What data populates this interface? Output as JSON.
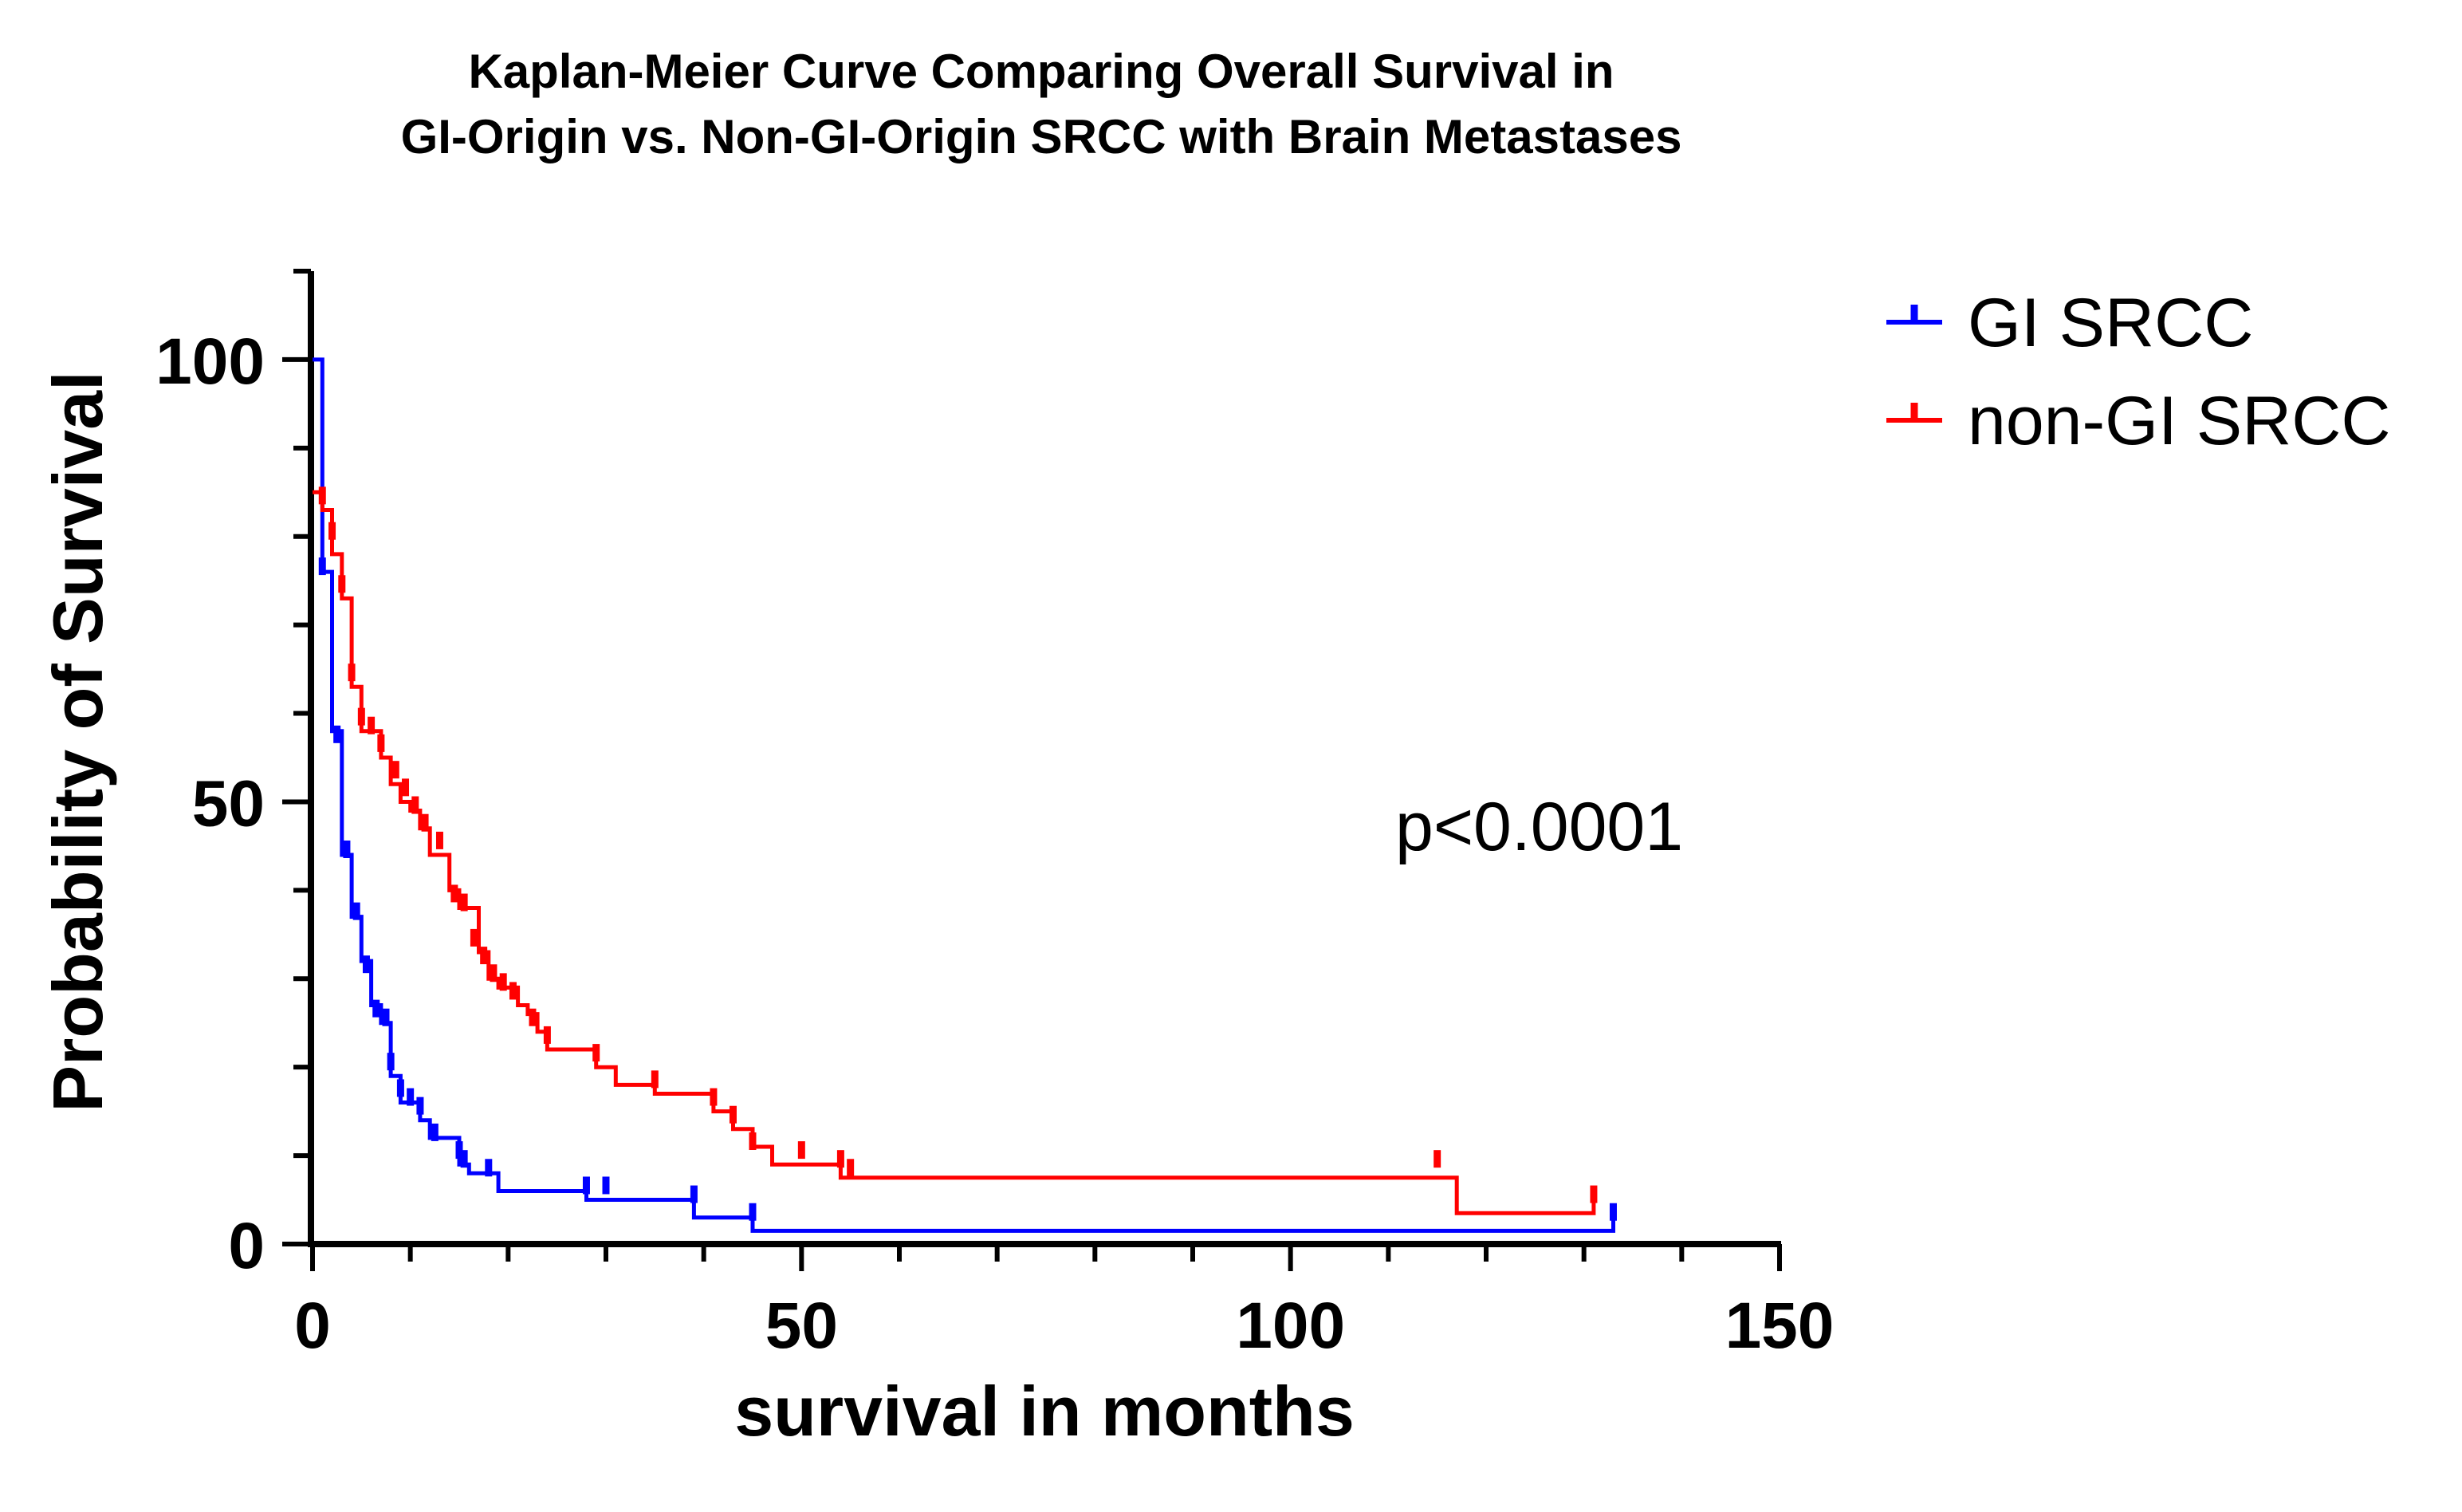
{
  "chart_data": {
    "type": "line",
    "title": "Kaplan-Meier Curve Comparing Overall Survival in",
    "subtitle": "GI-Origin vs. Non-GI-Origin SRCC with Brain Metastases",
    "xlabel": "survival in months",
    "ylabel": "Probability of Survival",
    "xlim": [
      0,
      150
    ],
    "ylim": [
      0,
      110
    ],
    "x_ticks": [
      "0",
      "50",
      "100",
      "150"
    ],
    "y_ticks": [
      "0",
      "50",
      "100"
    ],
    "grid": false,
    "legend_position": "top-right",
    "annotation": "p<0.0001",
    "series": [
      {
        "name": "GI SRCC",
        "color": "#0000ff",
        "points": [
          [
            0,
            100
          ],
          [
            1,
            100
          ],
          [
            1,
            76
          ],
          [
            2,
            76
          ],
          [
            2,
            58
          ],
          [
            3,
            58
          ],
          [
            3,
            44
          ],
          [
            4,
            44
          ],
          [
            4,
            37
          ],
          [
            5,
            37
          ],
          [
            5,
            32
          ],
          [
            6,
            32
          ],
          [
            6,
            27
          ],
          [
            7,
            27
          ],
          [
            7,
            25
          ],
          [
            8,
            25
          ],
          [
            8,
            19
          ],
          [
            9,
            19
          ],
          [
            9,
            16
          ],
          [
            11,
            16
          ],
          [
            11,
            14
          ],
          [
            12,
            14
          ],
          [
            12,
            12
          ],
          [
            15,
            12
          ],
          [
            15,
            9
          ],
          [
            16,
            9
          ],
          [
            16,
            8
          ],
          [
            19,
            8
          ],
          [
            19,
            6
          ],
          [
            28,
            6
          ],
          [
            28,
            5
          ],
          [
            39,
            5
          ],
          [
            39,
            3
          ],
          [
            45,
            3
          ],
          [
            45,
            1.5
          ],
          [
            133,
            1.5
          ],
          [
            133,
            3
          ]
        ],
        "censored": [
          [
            1,
            76
          ],
          [
            2.5,
            57
          ],
          [
            3.5,
            44
          ],
          [
            4.5,
            37
          ],
          [
            5.5,
            31
          ],
          [
            6.5,
            26
          ],
          [
            7.5,
            25
          ],
          [
            8,
            20
          ],
          [
            9,
            17
          ],
          [
            10,
            16
          ],
          [
            11,
            15
          ],
          [
            12.5,
            12
          ],
          [
            15,
            10
          ],
          [
            15.5,
            9
          ],
          [
            18,
            8
          ],
          [
            28,
            6
          ],
          [
            30,
            6
          ],
          [
            39,
            5
          ],
          [
            45,
            3
          ],
          [
            133,
            3
          ]
        ]
      },
      {
        "name": "non-GI SRCC",
        "color": "#ff0000",
        "points": [
          [
            0,
            85
          ],
          [
            1,
            85
          ],
          [
            1,
            83
          ],
          [
            2,
            83
          ],
          [
            2,
            78
          ],
          [
            3,
            78
          ],
          [
            3,
            73
          ],
          [
            4,
            73
          ],
          [
            4,
            63
          ],
          [
            5,
            63
          ],
          [
            5,
            58
          ],
          [
            7,
            58
          ],
          [
            7,
            55
          ],
          [
            8,
            55
          ],
          [
            8,
            52
          ],
          [
            9,
            52
          ],
          [
            9,
            50
          ],
          [
            10,
            50
          ],
          [
            10,
            49
          ],
          [
            11,
            49
          ],
          [
            11,
            47
          ],
          [
            12,
            47
          ],
          [
            12,
            44
          ],
          [
            14,
            44
          ],
          [
            14,
            40
          ],
          [
            15,
            40
          ],
          [
            15,
            38
          ],
          [
            17,
            38
          ],
          [
            17,
            33
          ],
          [
            18,
            33
          ],
          [
            18,
            30
          ],
          [
            19,
            30
          ],
          [
            19,
            29
          ],
          [
            21,
            29
          ],
          [
            21,
            27
          ],
          [
            22,
            27
          ],
          [
            22,
            26
          ],
          [
            23,
            26
          ],
          [
            23,
            24
          ],
          [
            24,
            24
          ],
          [
            24,
            22
          ],
          [
            29,
            22
          ],
          [
            29,
            20
          ],
          [
            31,
            20
          ],
          [
            31,
            18
          ],
          [
            35,
            18
          ],
          [
            35,
            17
          ],
          [
            41,
            17
          ],
          [
            41,
            15
          ],
          [
            43,
            15
          ],
          [
            43,
            13
          ],
          [
            45,
            13
          ],
          [
            45,
            11
          ],
          [
            47,
            11
          ],
          [
            47,
            9
          ],
          [
            54,
            9
          ],
          [
            54,
            7.5
          ],
          [
            117,
            7.5
          ],
          [
            117,
            3.5
          ],
          [
            131,
            3.5
          ],
          [
            131,
            5
          ]
        ],
        "censored": [
          [
            1,
            84
          ],
          [
            2,
            80
          ],
          [
            3,
            74
          ],
          [
            4,
            64
          ],
          [
            5,
            59
          ],
          [
            6,
            58
          ],
          [
            7,
            56
          ],
          [
            8.5,
            53
          ],
          [
            9.5,
            51
          ],
          [
            10.5,
            49
          ],
          [
            11.5,
            47
          ],
          [
            13,
            45
          ],
          [
            14.5,
            39
          ],
          [
            15.5,
            38
          ],
          [
            16.5,
            34
          ],
          [
            17.5,
            32
          ],
          [
            18.5,
            30
          ],
          [
            19.5,
            29
          ],
          [
            20.5,
            28
          ],
          [
            22.5,
            25
          ],
          [
            24,
            23
          ],
          [
            29,
            21
          ],
          [
            35,
            18
          ],
          [
            41,
            16
          ],
          [
            43,
            14
          ],
          [
            45,
            11
          ],
          [
            50,
            10
          ],
          [
            54,
            9
          ],
          [
            55,
            8
          ],
          [
            115,
            9
          ],
          [
            131,
            5
          ]
        ]
      }
    ]
  }
}
